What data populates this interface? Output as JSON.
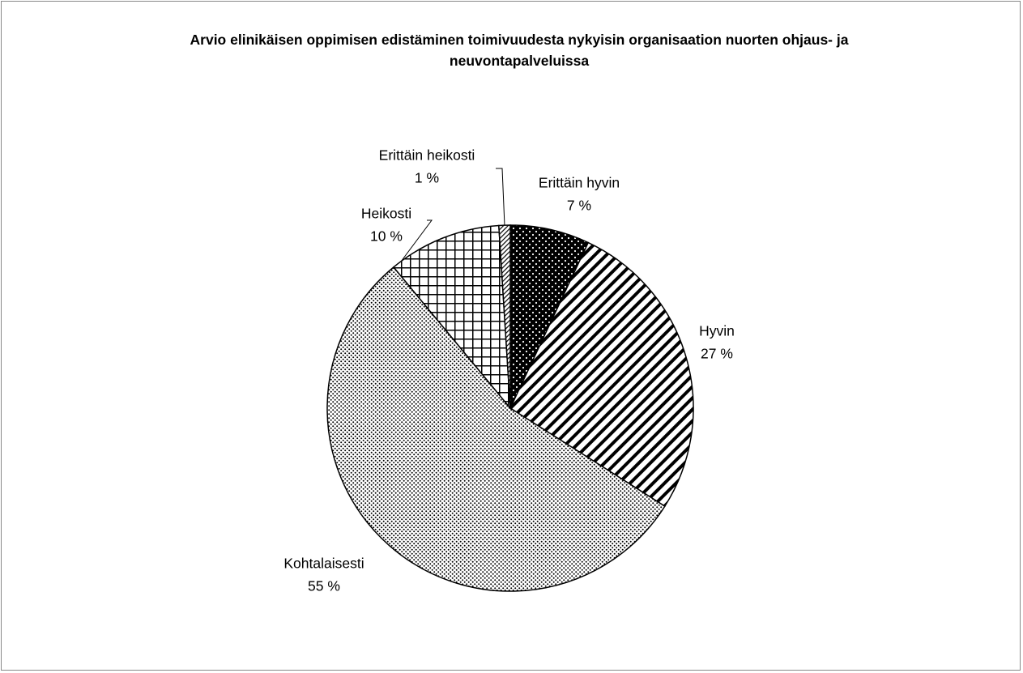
{
  "chart_data": {
    "type": "pie",
    "title": "Arvio elinikäisen oppimisen edistäminen toimivuudesta nykyisin organisaation nuorten ohjaus- ja neuvontapalveluissa",
    "categories": [
      "Erittäin hyvin",
      "Hyvin",
      "Kohtalaisesti",
      "Heikosti",
      "Erittäin heikosti"
    ],
    "values": [
      7,
      27,
      55,
      10,
      1
    ],
    "value_labels": [
      "7 %",
      "27 %",
      "55 %",
      "10 %",
      "1 %"
    ]
  }
}
